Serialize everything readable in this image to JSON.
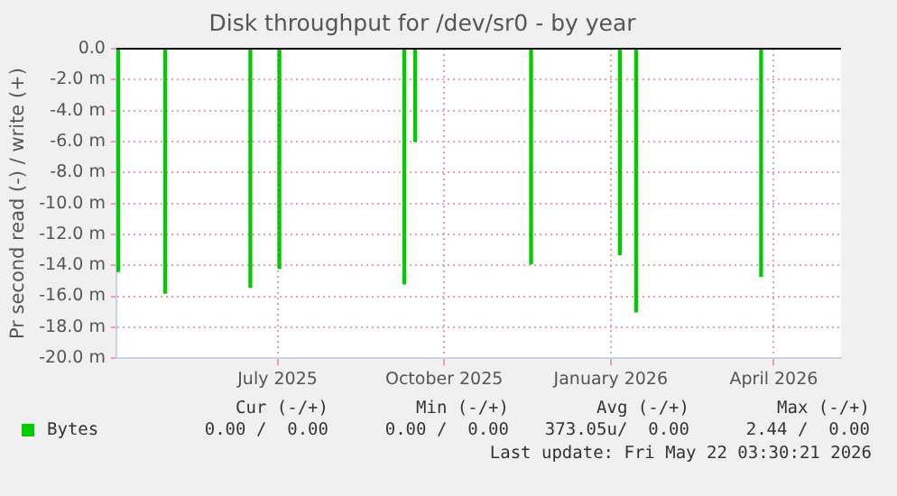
{
  "chart_data": {
    "type": "bar",
    "title": "Disk throughput for /dev/sr0 - by year",
    "ylabel": "Pr second read (-) / write (+)",
    "x": [
      "2025-04-18",
      "2025-05-14",
      "2025-06-30",
      "2025-07-16",
      "2025-09-23",
      "2025-09-29",
      "2025-12-02",
      "2026-01-20",
      "2026-01-29",
      "2026-04-08"
    ],
    "series": [
      {
        "name": "Bytes",
        "color": "#00cc00",
        "values": [
          -14.4,
          -15.8,
          -15.4,
          -14.2,
          -15.2,
          -6.0,
          -13.9,
          -13.3,
          -17.0,
          -14.7
        ]
      }
    ],
    "xlim": [
      "2025-04-17",
      "2026-05-22T03:30"
    ],
    "xticks": [
      {
        "value": "2025-07-15",
        "label": "July 2025"
      },
      {
        "value": "2025-10-15",
        "label": "October 2025"
      },
      {
        "value": "2026-01-15",
        "label": "January 2026"
      },
      {
        "value": "2026-04-15",
        "label": "April 2026"
      }
    ],
    "ylim": [
      -20,
      0
    ],
    "yticks": [
      {
        "value": -20,
        "label": "-20.0 m"
      },
      {
        "value": -18,
        "label": "-18.0 m"
      },
      {
        "value": -16,
        "label": "-16.0 m"
      },
      {
        "value": -14,
        "label": "-14.0 m"
      },
      {
        "value": -12,
        "label": "-12.0 m"
      },
      {
        "value": -10,
        "label": "-10.0 m"
      },
      {
        "value": -8,
        "label": "-8.0 m"
      },
      {
        "value": -6,
        "label": "-6.0 m"
      },
      {
        "value": -4,
        "label": "-4.0 m"
      },
      {
        "value": -2,
        "label": "-2.0 m"
      },
      {
        "value": 0,
        "label": "0.0"
      }
    ],
    "grid": true,
    "legend": "bottom",
    "annotations": [
      "Cur (-/+)",
      "Min (-/+)",
      "Avg (-/+)",
      "Max (-/+)",
      "0.00 /  0.00",
      "0.00 /  0.00",
      "373.05u/  0.00",
      "2.44 /  0.00",
      "Last update: Fri May 22 03:30:21 2026"
    ]
  }
}
